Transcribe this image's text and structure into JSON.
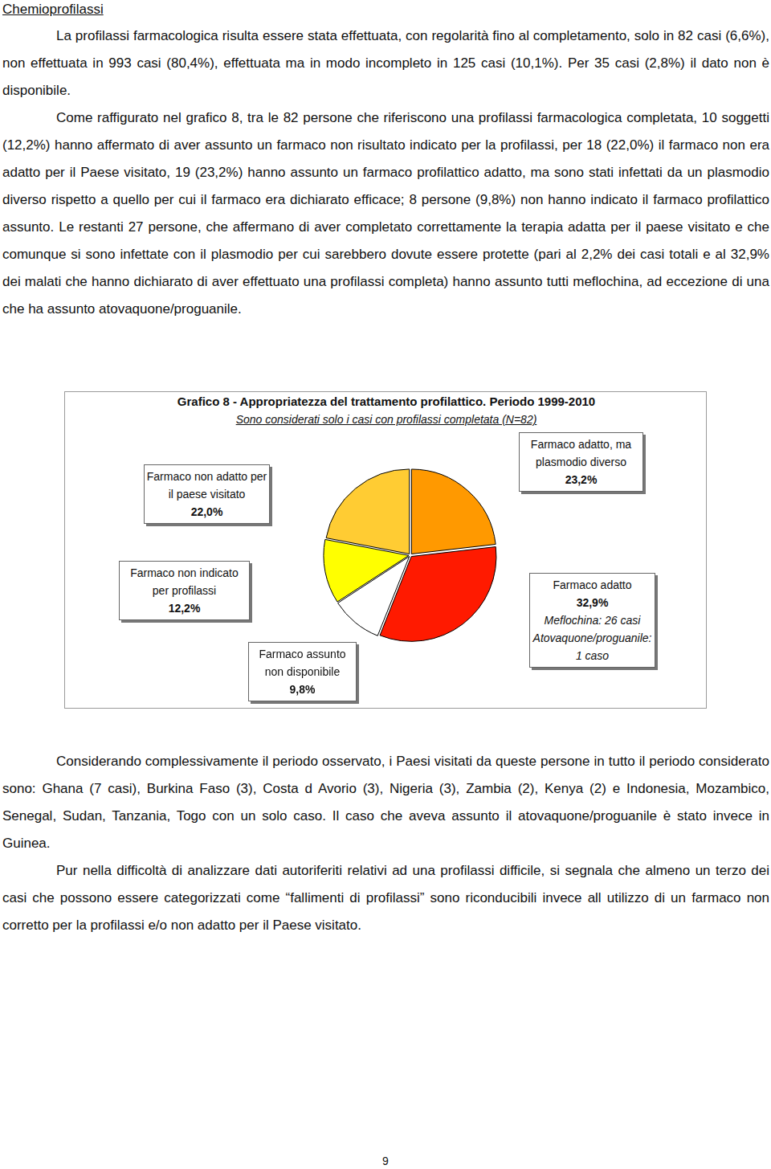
{
  "heading": "Chemioprofilassi",
  "paragraphs_before": [
    "La profilassi farmacologica risulta essere stata effettuata, con regolarità fino al completamento, solo in 82 casi (6,6%), non effettuata in 993 casi (80,4%), effettuata ma in modo incompleto in 125 casi (10,1%). Per 35 casi (2,8%) il dato non è disponibile.",
    "Come raffigurato nel grafico 8, tra le 82 persone che riferiscono una profilassi farmacologica completata, 10 soggetti (12,2%) hanno affermato di aver assunto un farmaco non risultato indicato per la profilassi, per 18 (22,0%) il farmaco non era adatto per il Paese visitato, 19 (23,2%) hanno assunto un farmaco profilattico adatto, ma sono stati infettati da un plasmodio diverso rispetto a quello per cui il farmaco era dichiarato efficace; 8 persone (9,8%) non hanno indicato il farmaco profilattico assunto. Le restanti 27 persone, che affermano di aver completato correttamente la terapia adatta per il paese visitato e che comunque si sono infettate con il plasmodio per cui sarebbero dovute essere protette (pari al 2,2% dei casi totali e al 32,9% dei malati che hanno dichiarato di aver effettuato una profilassi completa) hanno assunto tutti meflochina, ad eccezione di una che ha assunto atovaquone/proguanile."
  ],
  "chart_data": {
    "type": "pie",
    "title": "Grafico 8 - Appropriatezza del trattamento profilattico. Periodo 1999-2010",
    "subtitle": "Sono considerati solo i casi con profilassi completata (N=82)",
    "categories": [
      "Farmaco adatto, ma plasmodio diverso",
      "Farmaco adatto",
      "Farmaco assunto non disponibile",
      "Farmaco non indicato per profilassi",
      "Farmaco non adatto per il paese visitato"
    ],
    "values": [
      23.2,
      32.9,
      9.8,
      12.2,
      22.0
    ],
    "value_labels": [
      "23,2%",
      "32,9%",
      "9,8%",
      "12,2%",
      "22,0%"
    ],
    "colors": [
      "#ff9900",
      "#ff1a00",
      "#ffffff",
      "#ffff00",
      "#ffcc33"
    ],
    "annotations": [
      {
        "category": "Farmaco adatto",
        "lines": [
          "Meflochina: 26 casi",
          "Atovaquone/proguanile: 1 caso"
        ]
      }
    ],
    "legend": false,
    "data_labels": true
  },
  "paragraphs_after": [
    "Considerando complessivamente il periodo osservato, i Paesi visitati da queste persone in tutto il periodo considerato sono: Ghana (7 casi), Burkina Faso (3), Costa d Avorio (3), Nigeria (3), Zambia (2), Kenya (2) e Indonesia, Mozambico, Senegal, Sudan, Tanzania, Togo con un solo caso. Il caso che aveva assunto il atovaquone/proguanile è stato invece in Guinea.",
    "Pur nella difficoltà di analizzare dati autoriferiti relativi ad una profilassi difficile, si segnala che almeno un terzo dei casi che possono essere categorizzati come “fallimenti di profilassi” sono riconducibili invece all utilizzo di un farmaco non corretto per la profilassi e/o non adatto per il Paese visitato."
  ],
  "page_number": "9"
}
